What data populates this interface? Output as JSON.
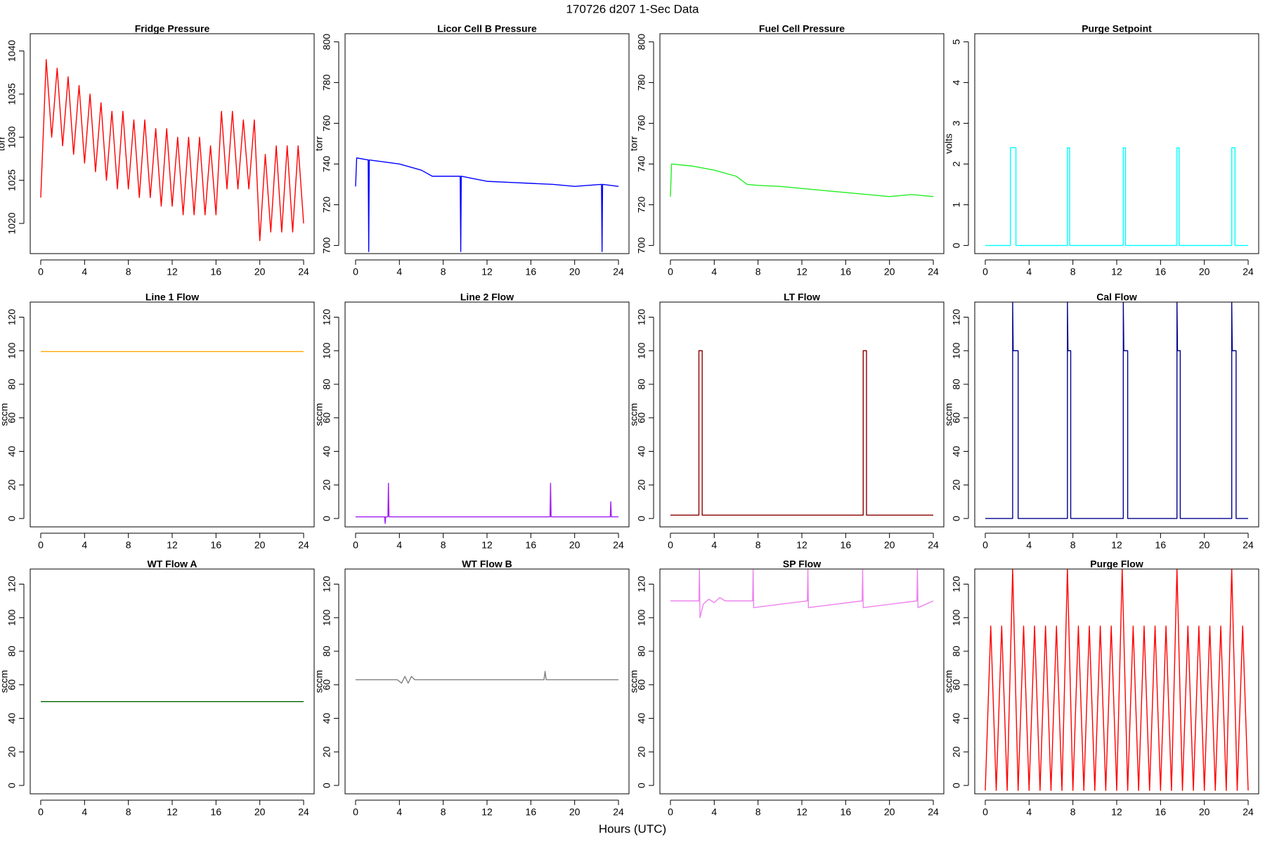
{
  "title": "170726   d207   1-Sec Data",
  "xlabel": "Hours (UTC)",
  "chart_data": [
    {
      "type": "line",
      "title": "Fridge Pressure",
      "ylabel": "torr",
      "x": [
        0,
        0.5,
        1,
        1.5,
        2,
        2.5,
        3,
        3.5,
        4,
        4.5,
        5,
        5.5,
        6,
        6.5,
        7,
        7.5,
        8,
        8.5,
        9,
        9.5,
        10,
        10.5,
        11,
        11.5,
        12,
        12.5,
        13,
        13.5,
        14,
        14.5,
        15,
        15.5,
        16,
        16.5,
        17,
        17.5,
        18,
        18.5,
        19,
        19.5,
        20,
        20.5,
        21,
        21.5,
        22,
        22.5,
        23,
        23.5,
        24
      ],
      "series": [
        {
          "color": "#ff0000",
          "values": [
            1023,
            1039,
            1030,
            1038,
            1029,
            1037,
            1028,
            1036,
            1027,
            1035,
            1026,
            1034,
            1025,
            1033,
            1024,
            1033,
            1024,
            1032,
            1023,
            1032,
            1023,
            1031,
            1022,
            1031,
            1022,
            1030,
            1021,
            1030,
            1021,
            1030,
            1021,
            1029,
            1021,
            1033,
            1024,
            1033,
            1024,
            1032,
            1024,
            1032,
            1018,
            1028,
            1019,
            1029,
            1019,
            1029,
            1019,
            1029,
            1020
          ]
        }
      ],
      "xlim": [
        -0.96,
        24.96
      ],
      "xticks": [
        0,
        4,
        8,
        12,
        16,
        20,
        24
      ],
      "ylim": [
        1016.5,
        1042
      ],
      "yticks": [
        1020,
        1025,
        1030,
        1035,
        1040
      ]
    },
    {
      "type": "line",
      "title": "Licor Cell B Pressure",
      "ylabel": "torr",
      "x": [
        0,
        0.1,
        1.15,
        1.2,
        1.25,
        4,
        6,
        7,
        8,
        9.55,
        9.6,
        9.65,
        12,
        14,
        16,
        18,
        20,
        22.45,
        22.5,
        22.55,
        24
      ],
      "series": [
        {
          "color": "#0000ff",
          "values": [
            729,
            743,
            742,
            697,
            742,
            740,
            737,
            734,
            734,
            734,
            697,
            734,
            731.5,
            731,
            730.5,
            730,
            729,
            730,
            697,
            730,
            729
          ]
        }
      ],
      "xlim": [
        -0.96,
        24.96
      ],
      "xticks": [
        0,
        4,
        8,
        12,
        16,
        20,
        24
      ],
      "ylim": [
        696,
        804
      ],
      "yticks": [
        700,
        720,
        740,
        760,
        780,
        800
      ]
    },
    {
      "type": "line",
      "title": "Fuel Cell Pressure",
      "ylabel": "torr",
      "x": [
        0,
        0.1,
        2,
        4,
        6,
        7,
        8,
        10,
        12,
        14,
        16,
        18,
        20,
        22,
        24
      ],
      "series": [
        {
          "color": "#22ee22",
          "values": [
            724,
            740,
            739,
            737,
            734,
            730,
            729.5,
            729,
            728,
            727,
            726,
            725,
            724,
            725,
            724
          ]
        }
      ],
      "xlim": [
        -0.96,
        24.96
      ],
      "xticks": [
        0,
        4,
        8,
        12,
        16,
        20,
        24
      ],
      "ylim": [
        696,
        804
      ],
      "yticks": [
        700,
        720,
        740,
        760,
        780,
        800
      ]
    },
    {
      "type": "line",
      "title": "Purge Setpoint",
      "ylabel": "volts",
      "x": [
        0,
        2.3,
        2.3,
        2.8,
        2.8,
        7.5,
        7.5,
        7.7,
        7.7,
        12.6,
        12.6,
        12.8,
        12.8,
        17.5,
        17.5,
        17.7,
        17.7,
        22.5,
        22.5,
        22.8,
        22.8,
        24
      ],
      "series": [
        {
          "color": "#00ffff",
          "values": [
            0,
            0,
            2.4,
            2.4,
            0,
            0,
            2.4,
            2.4,
            0,
            0,
            2.4,
            2.4,
            0,
            0,
            2.4,
            2.4,
            0,
            0,
            2.4,
            2.4,
            0,
            0
          ]
        }
      ],
      "xlim": [
        -0.96,
        24.96
      ],
      "xticks": [
        0,
        4,
        8,
        12,
        16,
        20,
        24
      ],
      "ylim": [
        -0.2,
        5.2
      ],
      "yticks": [
        0,
        1,
        2,
        3,
        4,
        5
      ]
    },
    {
      "type": "line",
      "title": "Line 1 Flow",
      "ylabel": "sccm",
      "x": [
        0,
        24
      ],
      "series": [
        {
          "color": "#ffa500",
          "values": [
            99.5,
            99.5
          ]
        }
      ],
      "xlim": [
        -0.96,
        24.96
      ],
      "xticks": [
        0,
        4,
        8,
        12,
        16,
        20,
        24
      ],
      "ylim": [
        -5,
        129
      ],
      "yticks": [
        0,
        20,
        40,
        60,
        80,
        100,
        120
      ]
    },
    {
      "type": "line",
      "title": "Line 2 Flow",
      "ylabel": "sccm",
      "x": [
        0,
        2.65,
        2.7,
        2.75,
        2.95,
        3,
        3.05,
        17.75,
        17.8,
        17.85,
        23.25,
        23.3,
        23.35,
        24
      ],
      "series": [
        {
          "color": "#a020f0",
          "values": [
            1,
            1,
            -3,
            1,
            1,
            21,
            1,
            1,
            21,
            1,
            1,
            10,
            1,
            1
          ]
        }
      ],
      "xlim": [
        -0.96,
        24.96
      ],
      "xticks": [
        0,
        4,
        8,
        12,
        16,
        20,
        24
      ],
      "ylim": [
        -5,
        129
      ],
      "yticks": [
        0,
        20,
        40,
        60,
        80,
        100,
        120
      ]
    },
    {
      "type": "line",
      "title": "LT Flow",
      "ylabel": "sccm",
      "x": [
        0,
        2.6,
        2.6,
        2.9,
        2.9,
        17.6,
        17.6,
        17.9,
        17.9,
        24
      ],
      "series": [
        {
          "color": "#8b0000",
          "values": [
            2,
            2,
            100,
            100,
            2,
            2,
            100,
            100,
            2,
            2
          ]
        }
      ],
      "xlim": [
        -0.96,
        24.96
      ],
      "xticks": [
        0,
        4,
        8,
        12,
        16,
        20,
        24
      ],
      "ylim": [
        -5,
        129
      ],
      "yticks": [
        0,
        20,
        40,
        60,
        80,
        100,
        120
      ]
    },
    {
      "type": "line",
      "title": "Cal Flow",
      "ylabel": "sccm",
      "x": [
        0,
        2.5,
        2.5,
        2.55,
        3.0,
        3.0,
        7.5,
        7.5,
        7.55,
        7.8,
        7.8,
        12.6,
        12.6,
        12.65,
        13.0,
        13.0,
        17.5,
        17.5,
        17.55,
        17.8,
        17.8,
        22.5,
        22.5,
        22.55,
        22.9,
        22.9,
        24
      ],
      "series": [
        {
          "color": "#00008b",
          "values": [
            0,
            0,
            129,
            100,
            100,
            0,
            0,
            129,
            100,
            100,
            0,
            0,
            129,
            100,
            100,
            0,
            0,
            129,
            100,
            100,
            0,
            0,
            129,
            100,
            100,
            0,
            0
          ]
        }
      ],
      "xlim": [
        -0.96,
        24.96
      ],
      "xticks": [
        0,
        4,
        8,
        12,
        16,
        20,
        24
      ],
      "ylim": [
        -5,
        129
      ],
      "yticks": [
        0,
        20,
        40,
        60,
        80,
        100,
        120
      ]
    },
    {
      "type": "line",
      "title": "WT Flow A",
      "ylabel": "sccm",
      "x": [
        0,
        24
      ],
      "series": [
        {
          "color": "#006400",
          "values": [
            50,
            50
          ]
        }
      ],
      "xlim": [
        -0.96,
        24.96
      ],
      "xticks": [
        0,
        4,
        8,
        12,
        16,
        20,
        24
      ],
      "ylim": [
        -5,
        129
      ],
      "yticks": [
        0,
        20,
        40,
        60,
        80,
        100,
        120
      ]
    },
    {
      "type": "line",
      "title": "WT Flow B",
      "ylabel": "sccm",
      "x": [
        0,
        3.8,
        4.2,
        4.5,
        4.8,
        5.1,
        5.4,
        17.2,
        17.3,
        17.4,
        24
      ],
      "series": [
        {
          "color": "#808080",
          "values": [
            63,
            63,
            61,
            65,
            61,
            65,
            63,
            63,
            68,
            63,
            63
          ]
        }
      ],
      "xlim": [
        -0.96,
        24.96
      ],
      "xticks": [
        0,
        4,
        8,
        12,
        16,
        20,
        24
      ],
      "ylim": [
        -5,
        129
      ],
      "yticks": [
        0,
        20,
        40,
        60,
        80,
        100,
        120
      ]
    },
    {
      "type": "line",
      "title": "SP Flow",
      "ylabel": "sccm",
      "x": [
        0,
        2.6,
        2.65,
        2.7,
        3.0,
        3.5,
        4,
        4.5,
        5,
        5.5,
        7.5,
        7.55,
        7.6,
        12.5,
        12.55,
        12.6,
        17.5,
        17.55,
        17.6,
        22.5,
        22.55,
        22.6,
        24
      ],
      "series": [
        {
          "color": "#ee82ee",
          "values": [
            110,
            110,
            129,
            100,
            108,
            111,
            109,
            112,
            110,
            110,
            110,
            129,
            106,
            110,
            129,
            106,
            110,
            129,
            106,
            110,
            129,
            106,
            110
          ]
        }
      ],
      "xlim": [
        -0.96,
        24.96
      ],
      "xticks": [
        0,
        4,
        8,
        12,
        16,
        20,
        24
      ],
      "ylim": [
        -5,
        129
      ],
      "yticks": [
        0,
        20,
        40,
        60,
        80,
        100,
        120
      ]
    },
    {
      "type": "line",
      "title": "Purge Flow",
      "ylabel": "sccm",
      "x": [
        0,
        0.5,
        1,
        1.5,
        2,
        2.5,
        3,
        3.5,
        4,
        4.5,
        5,
        5.5,
        6,
        6.5,
        7,
        7.5,
        8,
        8.5,
        9,
        9.5,
        10,
        10.5,
        11,
        11.5,
        12,
        12.5,
        13,
        13.5,
        14,
        14.5,
        15,
        15.5,
        16,
        16.5,
        17,
        17.5,
        18,
        18.5,
        19,
        19.5,
        20,
        20.5,
        21,
        21.5,
        22,
        22.5,
        23,
        23.5,
        24
      ],
      "series": [
        {
          "color": "#ff0000",
          "values": [
            -3,
            95,
            -3,
            95,
            -3,
            129,
            -3,
            95,
            -3,
            95,
            -3,
            95,
            -3,
            95,
            -3,
            129,
            -3,
            95,
            -3,
            95,
            -3,
            95,
            -3,
            95,
            -3,
            129,
            -3,
            95,
            -3,
            95,
            -3,
            95,
            -3,
            95,
            -3,
            129,
            -3,
            95,
            -3,
            95,
            -3,
            95,
            -3,
            95,
            -3,
            129,
            -3,
            95,
            -3
          ]
        }
      ],
      "xlim": [
        -0.96,
        24.96
      ],
      "xticks": [
        0,
        4,
        8,
        12,
        16,
        20,
        24
      ],
      "ylim": [
        -5,
        129
      ],
      "yticks": [
        0,
        20,
        40,
        60,
        80,
        100,
        120
      ]
    }
  ]
}
